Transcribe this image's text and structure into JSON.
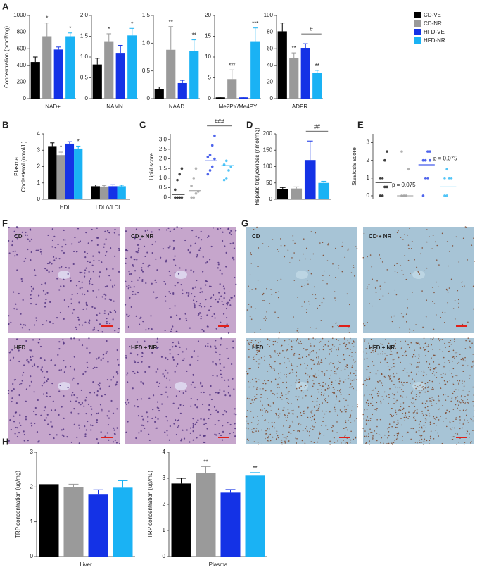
{
  "panels": [
    "A",
    "B",
    "C",
    "D",
    "E",
    "F",
    "G",
    "H"
  ],
  "legend": {
    "names": [
      "CD-VE",
      "CD-NR",
      "HFD-VE",
      "HFD-NR"
    ],
    "colors": [
      "#000000",
      "#9a9a9a",
      "#1432e6",
      "#1ab2f4"
    ]
  },
  "chart_data": [
    {
      "type": "bar",
      "ylabel": "Concentration (pmol/mg)",
      "xlabel": "NAD+",
      "ylim": [
        0,
        1000
      ],
      "yticks": [
        0,
        200,
        400,
        600,
        800,
        1000
      ],
      "values": [
        440,
        750,
        590,
        750
      ],
      "errors": [
        60,
        160,
        30,
        40
      ],
      "annotations": [
        null,
        "*",
        null,
        "*"
      ]
    },
    {
      "type": "bar",
      "xlabel": "NAMN",
      "ylim": [
        0,
        2
      ],
      "yticks": [
        0,
        0.5,
        {
          "value": 1,
          "label": "1.0"
        },
        1.5,
        {
          "value": 2,
          "label": "2.0"
        }
      ],
      "values": [
        0.82,
        1.38,
        1.1,
        1.52
      ],
      "errors": [
        0.15,
        0.18,
        0.18,
        0.17
      ],
      "annotations": [
        null,
        "*",
        null,
        "*"
      ]
    },
    {
      "type": "bar",
      "xlabel": "NAAD",
      "ylim": [
        0,
        1.5
      ],
      "yticks": [
        0,
        0.5,
        {
          "value": 1,
          "label": "1.0"
        },
        1.5
      ],
      "values": [
        0.17,
        0.88,
        0.28,
        0.86
      ],
      "errors": [
        0.04,
        0.42,
        0.05,
        0.2
      ],
      "annotations": [
        null,
        "**",
        null,
        "**"
      ]
    },
    {
      "type": "bar",
      "xlabel": "Me2PY/Me4PY",
      "ylim": [
        0,
        20
      ],
      "yticks": [
        0,
        5,
        10,
        15,
        20
      ],
      "values": [
        0.3,
        4.7,
        0.3,
        13.8
      ],
      "errors": [
        0.1,
        2.2,
        0.1,
        3.2
      ],
      "annotations": [
        null,
        "***",
        null,
        "***"
      ]
    },
    {
      "type": "bar",
      "xlabel": "ADPR",
      "ylim": [
        0,
        100
      ],
      "yticks": [
        0,
        20,
        40,
        60,
        80,
        100
      ],
      "values": [
        81,
        49,
        61,
        31
      ],
      "errors": [
        10,
        6,
        5,
        3
      ],
      "annotations": [
        null,
        "**",
        null,
        "**"
      ],
      "comparisons": [
        {
          "groups": [
            "HFD-VE",
            "HFD-NR"
          ],
          "label": "#"
        }
      ]
    },
    {
      "type": "grouped_bar",
      "ylabel": [
        "Plasma",
        "Cholesterol (nmol/L)"
      ],
      "categories": [
        "HDL",
        "LDL/VLDL"
      ],
      "ylim": [
        0,
        4
      ],
      "yticks": [
        0,
        1,
        2,
        3,
        4
      ],
      "values": [
        [
          3.25,
          2.7,
          3.4,
          3.1
        ],
        [
          0.8,
          0.78,
          0.8,
          0.8
        ]
      ],
      "errors": [
        [
          0.2,
          0.18,
          0.12,
          0.15
        ],
        [
          0.08,
          0.07,
          0.09,
          0.06
        ]
      ],
      "annotations": [
        [
          null,
          "*",
          null,
          "*"
        ],
        [
          null,
          null,
          null,
          null
        ]
      ]
    },
    {
      "type": "dot",
      "ylabel": "Lipid score",
      "ylim": [
        -0.1,
        3.3
      ],
      "yticks": [
        0,
        0.5,
        {
          "value": 1,
          "label": "1.0"
        },
        1.5,
        {
          "value": 2,
          "label": "2.0"
        },
        2.5,
        {
          "value": 3,
          "label": "3.0"
        }
      ],
      "points": [
        [
          0,
          0,
          0,
          0,
          0.4,
          0.9,
          1.2,
          1.5
        ],
        [
          0,
          0,
          0.2,
          0.3,
          0.6,
          1.0,
          1.5
        ],
        [
          1.2,
          1.4,
          1.6,
          2.0,
          2.1,
          2.2,
          2.7,
          3.2
        ],
        [
          0.9,
          1.0,
          1.4,
          1.6,
          1.7,
          1.9
        ]
      ],
      "means": [
        0.15,
        0.35,
        1.9,
        1.65
      ],
      "comparisons": [
        {
          "groups": [
            "HFD-VE",
            "HFD-NR"
          ],
          "label": "###"
        }
      ]
    },
    {
      "type": "bar",
      "ylabel": "Hepatic triglycerides (nmol/mg)",
      "ylim": [
        0,
        200
      ],
      "yticks": [
        0,
        50,
        100,
        150,
        200
      ],
      "values": [
        32,
        33,
        120,
        50
      ],
      "errors": [
        4,
        5,
        58,
        5
      ],
      "annotations": [
        null,
        null,
        null,
        null
      ],
      "comparisons": [
        {
          "groups": [
            "HFD-VE",
            "HFD-NR"
          ],
          "label": "##"
        }
      ]
    },
    {
      "type": "dot",
      "ylabel": "Steatosis score",
      "ylim": [
        -0.2,
        3.5
      ],
      "yticks": [
        0,
        1,
        2,
        3
      ],
      "points": [
        [
          0,
          0,
          0.5,
          0.5,
          1,
          1,
          2,
          2.5
        ],
        [
          0,
          0,
          0,
          1.5,
          2.5
        ],
        [
          0,
          1,
          1,
          2,
          2,
          2,
          2.5,
          2.5
        ],
        [
          0,
          0,
          1,
          1,
          1,
          1.5
        ]
      ],
      "means": [
        0.75,
        0,
        1.75,
        0.5
      ],
      "annotations": [
        "p = 0.075",
        "p = 0.075"
      ]
    },
    {
      "type": "bar",
      "ylabel": "TRP concentration (ug/mg)",
      "xlabel": "Liver",
      "ylim": [
        0,
        3
      ],
      "yticks": [
        0,
        1,
        2,
        3
      ],
      "values": [
        2.08,
        2.0,
        1.8,
        1.98
      ],
      "errors": [
        0.18,
        0.08,
        0.12,
        0.2
      ],
      "annotations": [
        null,
        null,
        null,
        null
      ]
    },
    {
      "type": "bar",
      "ylabel": "TRP concentration (ug/mL)",
      "xlabel": "Plasma",
      "ylim": [
        0,
        4
      ],
      "yticks": [
        0,
        1,
        2,
        3,
        4
      ],
      "values": [
        2.8,
        3.2,
        2.45,
        3.1
      ],
      "errors": [
        0.2,
        0.25,
        0.12,
        0.12
      ],
      "annotations": [
        null,
        "**",
        null,
        "**"
      ]
    }
  ],
  "micrographs": {
    "F": [
      "CD",
      "CD + NR",
      "HFD",
      "HFD + NR"
    ],
    "G": [
      "CD",
      "CD + NR",
      "HFD",
      "HFD + NR"
    ]
  }
}
